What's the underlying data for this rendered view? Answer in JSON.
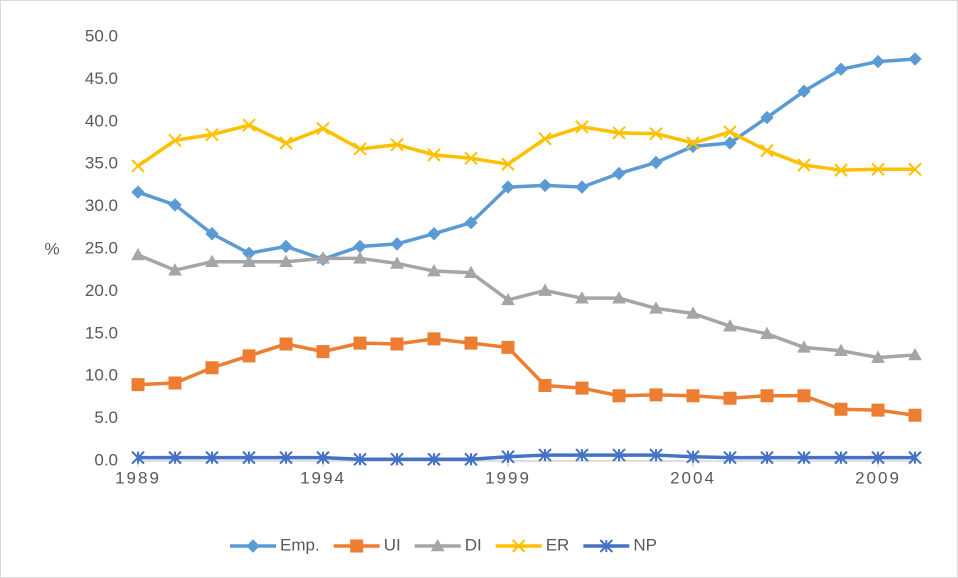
{
  "chart_data": {
    "type": "line",
    "y_label": "%",
    "x": [
      1989,
      1990,
      1991,
      1992,
      1993,
      1994,
      1995,
      1996,
      1997,
      1998,
      1999,
      2000,
      2001,
      2002,
      2003,
      2004,
      2005,
      2006,
      2007,
      2008,
      2009,
      2010
    ],
    "xlim": [
      1989,
      2010
    ],
    "xticks": [
      1989,
      1994,
      1999,
      2004,
      2009
    ],
    "ylim": [
      0,
      50
    ],
    "yticks": [
      {
        "value": 0,
        "label": "0.0"
      },
      {
        "value": 5,
        "label": "5.0"
      },
      {
        "value": 10,
        "label": "10.0"
      },
      {
        "value": 15,
        "label": "15.0"
      },
      {
        "value": 20,
        "label": "20.0"
      },
      {
        "value": 25,
        "label": "25.0"
      },
      {
        "value": 30,
        "label": "30.0"
      },
      {
        "value": 35,
        "label": "35.0"
      },
      {
        "value": 40,
        "label": "40.0"
      },
      {
        "value": 45,
        "label": "45.0"
      },
      {
        "value": 50,
        "label": "50.0"
      }
    ],
    "grid": false,
    "legend": "bottom",
    "series": [
      {
        "name": "Emp.",
        "color": "#5b9bd5",
        "marker": "diamond",
        "values": [
          31.7,
          30.2,
          26.8,
          24.5,
          25.3,
          23.8,
          25.3,
          25.6,
          26.8,
          28.1,
          32.3,
          32.5,
          32.3,
          33.9,
          35.2,
          37.1,
          37.5,
          40.5,
          43.6,
          46.2,
          47.1,
          47.4
        ]
      },
      {
        "name": "UI",
        "color": "#ed7d31",
        "marker": "square",
        "values": [
          9.0,
          9.2,
          11.0,
          12.4,
          13.8,
          12.9,
          13.9,
          13.8,
          14.4,
          13.9,
          13.4,
          8.9,
          8.6,
          7.7,
          7.8,
          7.7,
          7.4,
          7.7,
          7.7,
          6.1,
          6.0,
          5.4
        ]
      },
      {
        "name": "DI",
        "color": "#a5a5a5",
        "marker": "triangle",
        "values": [
          24.3,
          22.5,
          23.5,
          23.5,
          23.5,
          23.9,
          23.9,
          23.3,
          22.4,
          22.2,
          19.0,
          20.1,
          19.2,
          19.2,
          18.0,
          17.4,
          15.9,
          15.0,
          13.4,
          13.0,
          12.2,
          12.5
        ]
      },
      {
        "name": "ER",
        "color": "#ffc000",
        "marker": "x",
        "values": [
          34.8,
          37.8,
          38.5,
          39.6,
          37.5,
          39.2,
          36.8,
          37.3,
          36.1,
          35.7,
          35.0,
          38.0,
          39.4,
          38.7,
          38.6,
          37.5,
          38.8,
          36.6,
          34.9,
          34.3,
          34.4,
          34.4
        ]
      },
      {
        "name": "NP",
        "color": "#4472c4",
        "marker": "star",
        "values": [
          0.4,
          0.4,
          0.4,
          0.4,
          0.4,
          0.4,
          0.2,
          0.2,
          0.2,
          0.2,
          0.5,
          0.7,
          0.7,
          0.7,
          0.7,
          0.5,
          0.4,
          0.4,
          0.4,
          0.4,
          0.4,
          0.4
        ]
      }
    ]
  }
}
